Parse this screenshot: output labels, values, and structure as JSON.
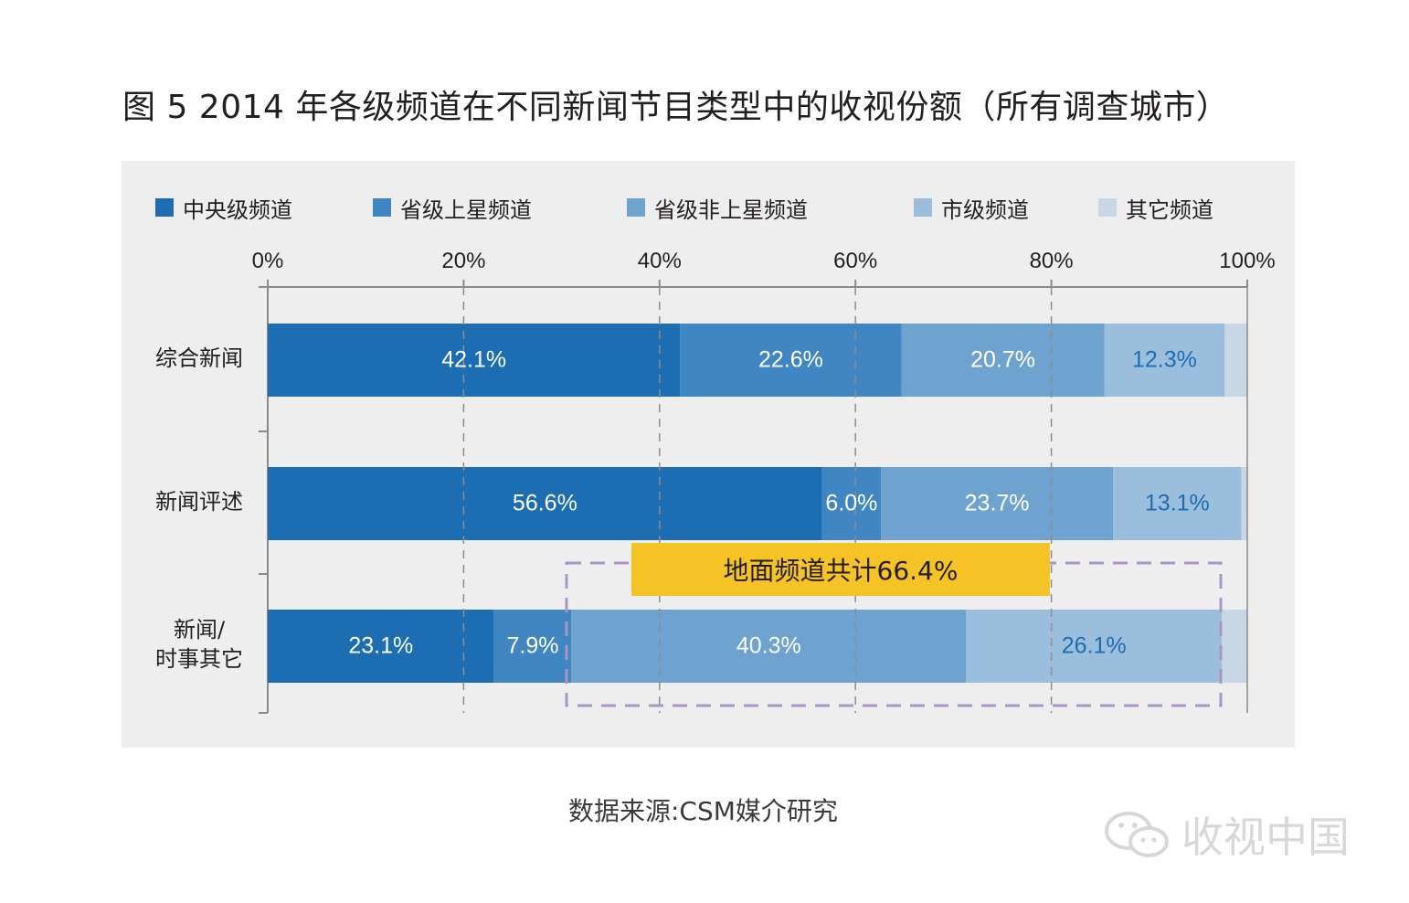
{
  "title": "图 5  2014 年各级频道在不同新闻节目类型中的收视份额（所有调查城市）",
  "source": "数据来源:CSM媒介研究",
  "watermark": "收视中国",
  "callout": "地面频道共计66.4%",
  "colors": {
    "central": "#1d6db2",
    "provincial_satellite": "#3f86c3",
    "provincial_other": "#6ea3cf",
    "city": "#9bbedd",
    "other": "#c7d7e6",
    "callout": "#f5c325",
    "dashed_box": "#a995c6"
  },
  "chart_data": {
    "type": "bar",
    "orientation": "horizontal",
    "stacked": true,
    "x_tick_labels": [
      "0%",
      "20%",
      "40%",
      "60%",
      "80%",
      "100%"
    ],
    "xlim": [
      0,
      100
    ],
    "grid": "dashed vertical",
    "legend_position": "top",
    "categories": [
      "综合新闻",
      "新闻评述",
      "新闻/\n时事其它"
    ],
    "series": [
      {
        "name": "中央级频道",
        "values": [
          42.1,
          56.6,
          23.1
        ],
        "labels": [
          "42.1%",
          "56.6%",
          "23.1%"
        ],
        "label_color": "#ffffff"
      },
      {
        "name": "省级上星频道",
        "values": [
          22.6,
          6.0,
          7.9
        ],
        "labels": [
          "22.6%",
          "6.0%",
          "7.9%"
        ],
        "label_color": "#ffffff"
      },
      {
        "name": "省级非上星频道",
        "values": [
          20.7,
          23.7,
          40.3
        ],
        "labels": [
          "20.7%",
          "23.7%",
          "40.3%"
        ],
        "label_color": "#ffffff"
      },
      {
        "name": "市级频道",
        "values": [
          12.3,
          13.1,
          26.1
        ],
        "labels": [
          "12.3%",
          "13.1%",
          "26.1%"
        ],
        "label_color": "#1d6db2"
      },
      {
        "name": "其它频道",
        "values": [
          2.3,
          0.6,
          2.6
        ],
        "labels": [
          "",
          "",
          ""
        ],
        "label_color": "#1d6db2"
      }
    ]
  }
}
